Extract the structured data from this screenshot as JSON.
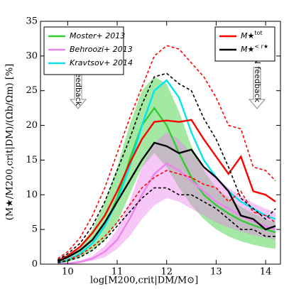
{
  "chart_data": {
    "type": "line",
    "xlabel": "log[M200,crit|DM/M⊙]",
    "ylabel": "(M★/M200,crit|DM)/(Ωb/Ωm) [%]",
    "annotations": [
      "stellar feedback",
      "AGN feedback"
    ],
    "x": [
      9.8,
      10,
      10.25,
      10.5,
      10.75,
      11,
      11.25,
      11.5,
      11.75,
      12,
      12.25,
      12.5,
      12.75,
      13,
      13.25,
      13.5,
      13.75,
      14,
      14.2
    ],
    "xlim": [
      9.45,
      14.3
    ],
    "xticks": [
      10,
      11,
      12,
      13,
      14
    ],
    "ylim": [
      0,
      35
    ],
    "yticks": [
      0,
      5,
      10,
      15,
      20,
      25,
      30,
      35
    ],
    "series": [
      {
        "name": "Moster+ 2013",
        "color": "#33cc33",
        "legend": "left",
        "style": "solid",
        "values": [
          0.2,
          0.5,
          1.5,
          3,
          5.5,
          9.5,
          15,
          20,
          22.5,
          20,
          16,
          12.5,
          10,
          8.5,
          7.3,
          6.3,
          5.6,
          5,
          4.6
        ],
        "low": [
          0.1,
          0.3,
          1,
          2,
          3.5,
          6,
          10,
          14,
          16,
          14,
          11,
          8.5,
          6.5,
          5,
          4,
          3.3,
          2.8,
          2.4,
          2.2
        ],
        "high": [
          0.4,
          0.9,
          2.5,
          5,
          9,
          14,
          20,
          25,
          27,
          26,
          22,
          17,
          13.5,
          11,
          9.5,
          8.3,
          7.3,
          6.5,
          6
        ]
      },
      {
        "name": "Behroozi+ 2013",
        "color": "#ee82ee",
        "legend": "left",
        "style": "solid",
        "values": [
          0,
          0.1,
          0.3,
          0.8,
          1.8,
          3.5,
          6.5,
          10,
          13,
          14.5,
          13.5,
          12,
          10.5,
          9,
          8,
          7,
          6.2,
          5.5,
          5
        ],
        "low": [
          0,
          0.05,
          0.2,
          0.5,
          1,
          2.2,
          4,
          6.5,
          8.5,
          9.5,
          9,
          8,
          7,
          6,
          5.3,
          4.7,
          4.2,
          3.8,
          3.5
        ],
        "high": [
          0,
          0.2,
          0.5,
          1.2,
          2.6,
          5,
          9,
          14,
          17.5,
          19,
          18,
          16,
          14,
          12.5,
          11,
          9.8,
          8.8,
          8,
          7.5
        ]
      },
      {
        "name": "Kravtsov+ 2014",
        "color": "#00e5ee",
        "legend": "left",
        "style": "solid",
        "values": [
          0.2,
          0.6,
          1.5,
          3,
          5.5,
          9,
          14,
          20,
          25,
          26.5,
          24,
          19,
          15,
          12.5,
          10.5,
          9,
          8,
          7,
          6.5
        ]
      },
      {
        "name": "M★",
        "name_sup": "tot",
        "color": "#ff0000",
        "legend": "right",
        "style": "solid",
        "values": [
          0.5,
          1.2,
          2.5,
          4.5,
          7,
          10.5,
          14.5,
          18,
          20.5,
          20.7,
          20.5,
          20.8,
          18,
          15.5,
          13,
          15.5,
          10.5,
          10,
          9
        ]
      },
      {
        "color": "#ff0000",
        "style": "dashed",
        "values": [
          0.8,
          1.8,
          3.8,
          7,
          11,
          16,
          21,
          25.5,
          30,
          31.5,
          31,
          29,
          27,
          24,
          20,
          19.5,
          14,
          13.5,
          12
        ]
      },
      {
        "color": "#ff0000",
        "style": "dashed",
        "values": [
          0.2,
          0.6,
          1.3,
          2.5,
          4,
          6,
          8.5,
          11,
          12.5,
          13.5,
          13,
          12.5,
          11.5,
          11,
          9,
          10.5,
          7.5,
          7,
          6
        ]
      },
      {
        "name": "M★",
        "name_sup": "< r★",
        "color": "#000000",
        "legend": "right",
        "style": "solid",
        "values": [
          0.4,
          1,
          2,
          3.5,
          6,
          9,
          12,
          15,
          17.5,
          17,
          16,
          16.5,
          14,
          12.5,
          10.5,
          7,
          6.5,
          5,
          5.5
        ]
      },
      {
        "color": "#000000",
        "style": "dashed",
        "values": [
          0.6,
          1.5,
          3,
          5.5,
          9,
          13.5,
          18,
          23,
          27,
          27.5,
          26,
          25,
          21,
          18,
          14,
          9.5,
          8,
          6.5,
          8
        ]
      },
      {
        "color": "#000000",
        "style": "dashed",
        "values": [
          0.2,
          0.5,
          1,
          2,
          3.5,
          5.5,
          7.5,
          9.5,
          11,
          11,
          10,
          10,
          9,
          8,
          6.5,
          5,
          5,
          4,
          4
        ]
      }
    ]
  }
}
